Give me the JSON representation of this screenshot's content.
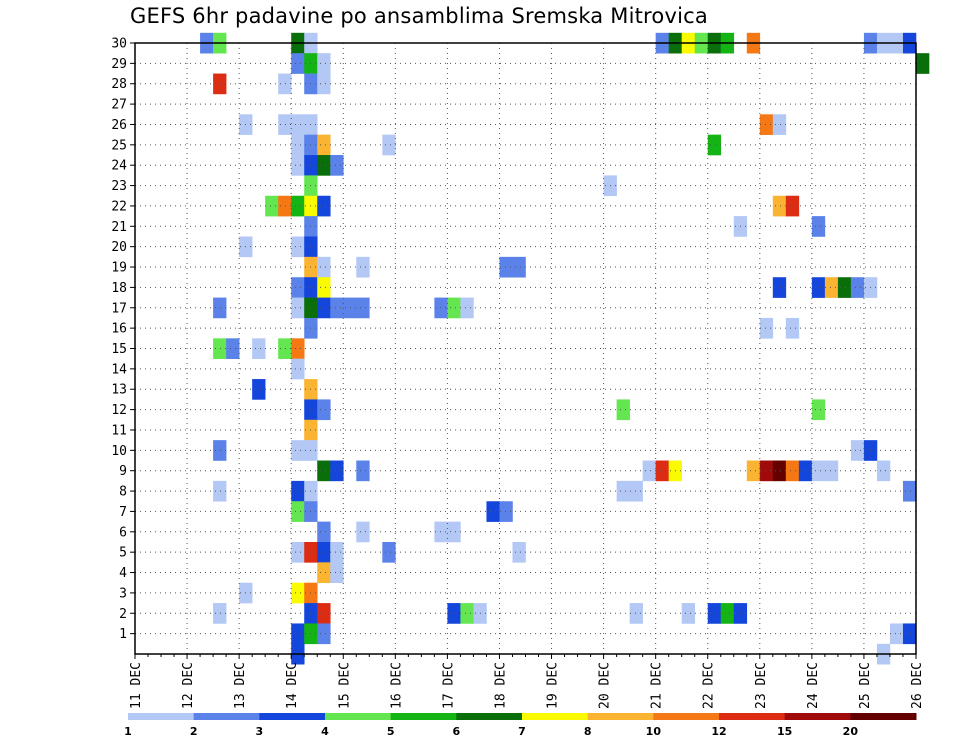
{
  "chart_data": {
    "type": "heatmap",
    "title": "GEFS 6hr padavine po ansamblima Sremska Mitrovica",
    "x_tick_labels": [
      "11 DEC",
      "12 DEC",
      "13 DEC",
      "14 DEC",
      "15 DEC",
      "16 DEC",
      "17 DEC",
      "18 DEC",
      "19 DEC",
      "20 DEC",
      "21 DEC",
      "22 DEC",
      "23 DEC",
      "24 DEC",
      "25 DEC",
      "26 DEC"
    ],
    "x_range_days": [
      11,
      26
    ],
    "y_tick_labels": [
      "1",
      "2",
      "3",
      "4",
      "5",
      "6",
      "7",
      "8",
      "9",
      "10",
      "11",
      "12",
      "13",
      "14",
      "15",
      "16",
      "17",
      "18",
      "19",
      "20",
      "21",
      "22",
      "23",
      "24",
      "25",
      "26",
      "27",
      "28",
      "29",
      "30"
    ],
    "y_range": [
      0,
      30
    ],
    "grid": "dotted",
    "colorbar": {
      "tick_labels": [
        "1",
        "2",
        "3",
        "4",
        "5",
        "6",
        "7",
        "8",
        "10",
        "12",
        "15",
        "20"
      ],
      "colors": [
        "#b4c8f5",
        "#5a82e8",
        "#1446dc",
        "#64e650",
        "#14b414",
        "#0a6e0a",
        "#fafa00",
        "#fab432",
        "#f57814",
        "#dc2d14",
        "#a00a0a",
        "#640000"
      ]
    },
    "cells": [
      [
        12.25,
        30,
        1
      ],
      [
        12.5,
        30,
        3
      ],
      [
        14.0,
        30,
        5
      ],
      [
        14.25,
        30,
        0
      ],
      [
        21.0,
        30,
        1
      ],
      [
        21.25,
        30,
        5
      ],
      [
        21.5,
        30,
        6
      ],
      [
        21.75,
        30,
        3
      ],
      [
        22.0,
        30,
        5
      ],
      [
        22.25,
        30,
        4
      ],
      [
        22.75,
        30,
        8
      ],
      [
        25.0,
        30,
        1
      ],
      [
        25.25,
        30,
        0
      ],
      [
        25.5,
        30,
        0
      ],
      [
        25.75,
        30,
        2
      ],
      [
        14.0,
        29,
        1
      ],
      [
        14.25,
        29,
        4
      ],
      [
        14.5,
        29,
        0
      ],
      [
        26.0,
        29,
        5
      ],
      [
        12.5,
        28,
        9
      ],
      [
        13.75,
        28,
        0
      ],
      [
        14.25,
        28,
        1
      ],
      [
        14.5,
        28,
        0
      ],
      [
        13.0,
        26,
        0
      ],
      [
        13.75,
        26,
        0
      ],
      [
        14.0,
        26,
        0
      ],
      [
        14.25,
        26,
        0
      ],
      [
        23.0,
        26,
        8
      ],
      [
        23.25,
        26,
        0
      ],
      [
        14.0,
        25,
        0
      ],
      [
        14.25,
        25,
        1
      ],
      [
        14.5,
        25,
        7
      ],
      [
        15.75,
        25,
        0
      ],
      [
        22.0,
        25,
        4
      ],
      [
        14.0,
        24,
        0
      ],
      [
        14.25,
        24,
        2
      ],
      [
        14.5,
        24,
        5
      ],
      [
        14.75,
        24,
        1
      ],
      [
        14.25,
        23,
        3
      ],
      [
        20.0,
        23,
        0
      ],
      [
        13.5,
        22,
        3
      ],
      [
        13.75,
        22,
        8
      ],
      [
        14.0,
        22,
        4
      ],
      [
        14.25,
        22,
        6
      ],
      [
        14.5,
        22,
        2
      ],
      [
        23.25,
        22,
        7
      ],
      [
        23.5,
        22,
        9
      ],
      [
        14.25,
        21,
        1
      ],
      [
        22.5,
        21,
        0
      ],
      [
        24.0,
        21,
        1
      ],
      [
        13.0,
        20,
        0
      ],
      [
        14.0,
        20,
        0
      ],
      [
        14.25,
        20,
        2
      ],
      [
        14.25,
        19,
        7
      ],
      [
        14.5,
        19,
        0
      ],
      [
        15.25,
        19,
        0
      ],
      [
        18.0,
        19,
        1
      ],
      [
        18.25,
        19,
        1
      ],
      [
        14.0,
        18,
        1
      ],
      [
        14.25,
        18,
        2
      ],
      [
        14.5,
        18,
        6
      ],
      [
        23.25,
        18,
        2
      ],
      [
        24.0,
        18,
        2
      ],
      [
        24.25,
        18,
        7
      ],
      [
        24.5,
        18,
        5
      ],
      [
        24.75,
        18,
        1
      ],
      [
        25.0,
        18,
        0
      ],
      [
        12.5,
        17,
        1
      ],
      [
        14.0,
        17,
        0
      ],
      [
        14.25,
        17,
        5
      ],
      [
        14.5,
        17,
        2
      ],
      [
        14.75,
        17,
        1
      ],
      [
        15.0,
        17,
        1
      ],
      [
        15.25,
        17,
        1
      ],
      [
        16.75,
        17,
        1
      ],
      [
        17.0,
        17,
        3
      ],
      [
        17.25,
        17,
        0
      ],
      [
        14.25,
        16,
        1
      ],
      [
        23.0,
        16,
        0
      ],
      [
        23.5,
        16,
        0
      ],
      [
        12.5,
        15,
        3
      ],
      [
        12.75,
        15,
        1
      ],
      [
        13.25,
        15,
        0
      ],
      [
        13.75,
        15,
        3
      ],
      [
        14.0,
        15,
        8
      ],
      [
        14.0,
        14,
        0
      ],
      [
        13.25,
        13,
        2
      ],
      [
        14.25,
        13,
        7
      ],
      [
        14.25,
        12,
        2
      ],
      [
        14.5,
        12,
        1
      ],
      [
        20.25,
        12,
        3
      ],
      [
        24.0,
        12,
        3
      ],
      [
        14.25,
        11,
        7
      ],
      [
        12.5,
        10,
        1
      ],
      [
        14.0,
        10,
        0
      ],
      [
        14.25,
        10,
        0
      ],
      [
        24.75,
        10,
        0
      ],
      [
        25.0,
        10,
        2
      ],
      [
        14.5,
        9,
        5
      ],
      [
        14.75,
        9,
        2
      ],
      [
        15.25,
        9,
        1
      ],
      [
        20.75,
        9,
        0
      ],
      [
        21.0,
        9,
        9
      ],
      [
        21.25,
        9,
        6
      ],
      [
        22.75,
        9,
        7
      ],
      [
        23.0,
        9,
        10
      ],
      [
        23.25,
        9,
        11
      ],
      [
        23.5,
        9,
        8
      ],
      [
        23.75,
        9,
        2
      ],
      [
        24.0,
        9,
        0
      ],
      [
        24.25,
        9,
        0
      ],
      [
        25.25,
        9,
        0
      ],
      [
        12.5,
        8,
        0
      ],
      [
        14.0,
        8,
        2
      ],
      [
        14.25,
        8,
        0
      ],
      [
        20.25,
        8,
        0
      ],
      [
        20.5,
        8,
        0
      ],
      [
        25.75,
        8,
        1
      ],
      [
        14.0,
        7,
        3
      ],
      [
        14.25,
        7,
        1
      ],
      [
        17.75,
        7,
        2
      ],
      [
        18.0,
        7,
        1
      ],
      [
        14.5,
        6,
        1
      ],
      [
        15.25,
        6,
        0
      ],
      [
        16.75,
        6,
        0
      ],
      [
        17.0,
        6,
        0
      ],
      [
        14.0,
        5,
        0
      ],
      [
        14.25,
        5,
        9
      ],
      [
        14.5,
        5,
        2
      ],
      [
        14.75,
        5,
        0
      ],
      [
        15.75,
        5,
        1
      ],
      [
        18.25,
        5,
        0
      ],
      [
        14.5,
        4,
        7
      ],
      [
        14.75,
        4,
        0
      ],
      [
        13.0,
        3,
        0
      ],
      [
        14.0,
        3,
        6
      ],
      [
        14.25,
        3,
        8
      ],
      [
        12.5,
        2,
        0
      ],
      [
        14.25,
        2,
        2
      ],
      [
        14.5,
        2,
        9
      ],
      [
        17.0,
        2,
        2
      ],
      [
        17.25,
        2,
        3
      ],
      [
        17.5,
        2,
        0
      ],
      [
        20.5,
        2,
        0
      ],
      [
        21.5,
        2,
        0
      ],
      [
        22.0,
        2,
        2
      ],
      [
        22.25,
        2,
        4
      ],
      [
        22.5,
        2,
        2
      ],
      [
        14.0,
        1,
        2
      ],
      [
        14.25,
        1,
        4
      ],
      [
        14.5,
        1,
        1
      ],
      [
        25.5,
        1,
        0
      ],
      [
        25.75,
        1,
        2
      ],
      [
        14.0,
        0,
        2
      ],
      [
        25.25,
        0,
        0
      ]
    ]
  }
}
